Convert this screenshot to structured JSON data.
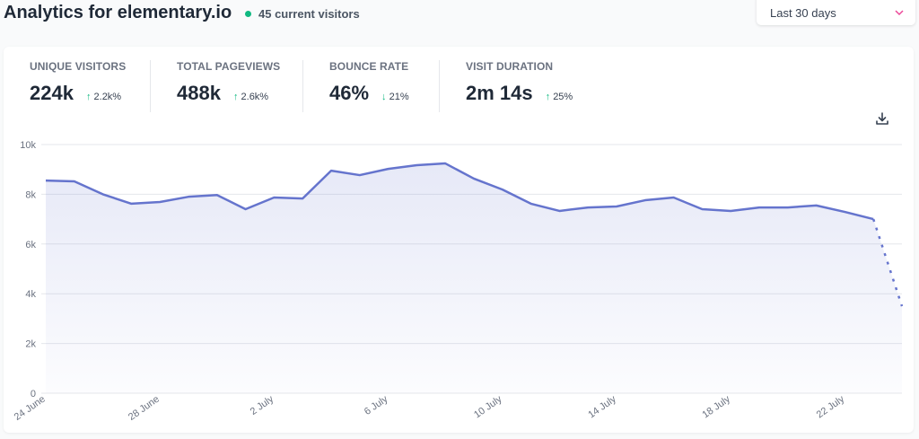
{
  "header": {
    "title": "Analytics for elementary.io",
    "current_visitors": "45 current visitors",
    "status_color": "#10b981"
  },
  "period_select": {
    "value": "Last 30 days",
    "icon": "chevron-down-icon"
  },
  "stats": [
    {
      "label": "UNIQUE VISITORS",
      "value": "224k",
      "change": "2.2k%",
      "direction": "up"
    },
    {
      "label": "TOTAL PAGEVIEWS",
      "value": "488k",
      "change": "2.6k%",
      "direction": "up"
    },
    {
      "label": "BOUNCE RATE",
      "value": "46%",
      "change": "21%",
      "direction": "down"
    },
    {
      "label": "VISIT DURATION",
      "value": "2m 14s",
      "change": "25%",
      "direction": "up"
    }
  ],
  "download_icon": "download-icon",
  "chart_data": {
    "type": "area",
    "ylim": [
      0,
      10000
    ],
    "y_ticks": [
      "0",
      "2k",
      "4k",
      "6k",
      "8k",
      "10k"
    ],
    "x_ticks": [
      "24 June",
      "28 June",
      "2 July",
      "6 July",
      "10 July",
      "14 July",
      "18 July",
      "22 July"
    ],
    "grid": true,
    "line_color": "#6574cd",
    "x": [
      "24 June",
      "25 June",
      "26 June",
      "27 June",
      "28 June",
      "29 June",
      "30 June",
      "1 July",
      "2 July",
      "3 July",
      "4 July",
      "5 July",
      "6 July",
      "7 July",
      "8 July",
      "9 July",
      "10 July",
      "11 July",
      "12 July",
      "13 July",
      "14 July",
      "15 July",
      "16 July",
      "17 July",
      "18 July",
      "19 July",
      "20 July",
      "21 July",
      "22 July",
      "23 July",
      "24 July"
    ],
    "values": [
      8550,
      8520,
      8000,
      7620,
      7690,
      7900,
      7970,
      7400,
      7870,
      7830,
      8950,
      8770,
      9020,
      9170,
      9240,
      8630,
      8190,
      7620,
      7330,
      7470,
      7510,
      7760,
      7870,
      7400,
      7330,
      7470,
      7470,
      7550,
      7290,
      7000,
      3500
    ],
    "incomplete_last_point": true
  }
}
